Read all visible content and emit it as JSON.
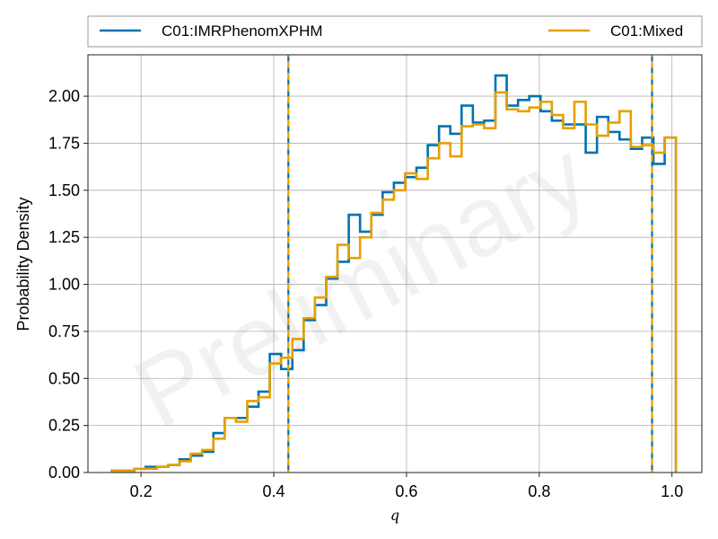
{
  "chart_data": {
    "type": "line",
    "title": "",
    "xlabel": "q",
    "ylabel": "Probability Density",
    "xlim": [
      0.12,
      1.045
    ],
    "ylim": [
      0.0,
      2.22
    ],
    "x_ticks": [
      0.2,
      0.4,
      0.6,
      0.8,
      1.0
    ],
    "y_ticks": [
      0.0,
      0.25,
      0.5,
      0.75,
      1.0,
      1.25,
      1.5,
      1.75,
      2.0
    ],
    "x_tick_labels": [
      "0.2",
      "0.4",
      "0.6",
      "0.8",
      "1.0"
    ],
    "y_tick_labels": [
      "0.00",
      "0.25",
      "0.50",
      "0.75",
      "1.00",
      "1.25",
      "1.50",
      "1.75",
      "2.00"
    ],
    "grid": true,
    "legend_placement": "top-outside",
    "watermark": "Preliminary",
    "bin_start": 0.156,
    "bin_width": 0.017,
    "series": [
      {
        "name": "C01:IMRPhenomXPHM",
        "color": "#0072b2",
        "values": [
          0.01,
          0.01,
          0.02,
          0.03,
          0.03,
          0.04,
          0.07,
          0.09,
          0.11,
          0.21,
          0.29,
          0.29,
          0.35,
          0.43,
          0.63,
          0.55,
          0.65,
          0.81,
          0.89,
          1.03,
          1.12,
          1.37,
          1.28,
          1.37,
          1.49,
          1.54,
          1.57,
          1.62,
          1.74,
          1.84,
          1.8,
          1.95,
          1.86,
          1.87,
          2.11,
          1.95,
          1.98,
          2.0,
          1.92,
          1.87,
          1.85,
          1.85,
          1.7,
          1.89,
          1.81,
          1.77,
          1.72,
          1.78,
          1.64,
          1.78
        ],
        "interval": [
          0.422,
          0.97
        ]
      },
      {
        "name": "C01:Mixed",
        "color": "#e69f00",
        "values": [
          0.01,
          0.01,
          0.02,
          0.02,
          0.03,
          0.04,
          0.06,
          0.1,
          0.12,
          0.18,
          0.29,
          0.27,
          0.38,
          0.4,
          0.58,
          0.61,
          0.71,
          0.82,
          0.93,
          1.04,
          1.21,
          1.14,
          1.25,
          1.38,
          1.45,
          1.5,
          1.59,
          1.56,
          1.67,
          1.75,
          1.68,
          1.84,
          1.85,
          1.83,
          2.02,
          1.93,
          1.92,
          1.94,
          1.97,
          1.9,
          1.83,
          1.97,
          1.85,
          1.79,
          1.86,
          1.92,
          1.73,
          1.74,
          1.7,
          1.78
        ],
        "interval": [
          0.422,
          0.97
        ]
      }
    ]
  }
}
